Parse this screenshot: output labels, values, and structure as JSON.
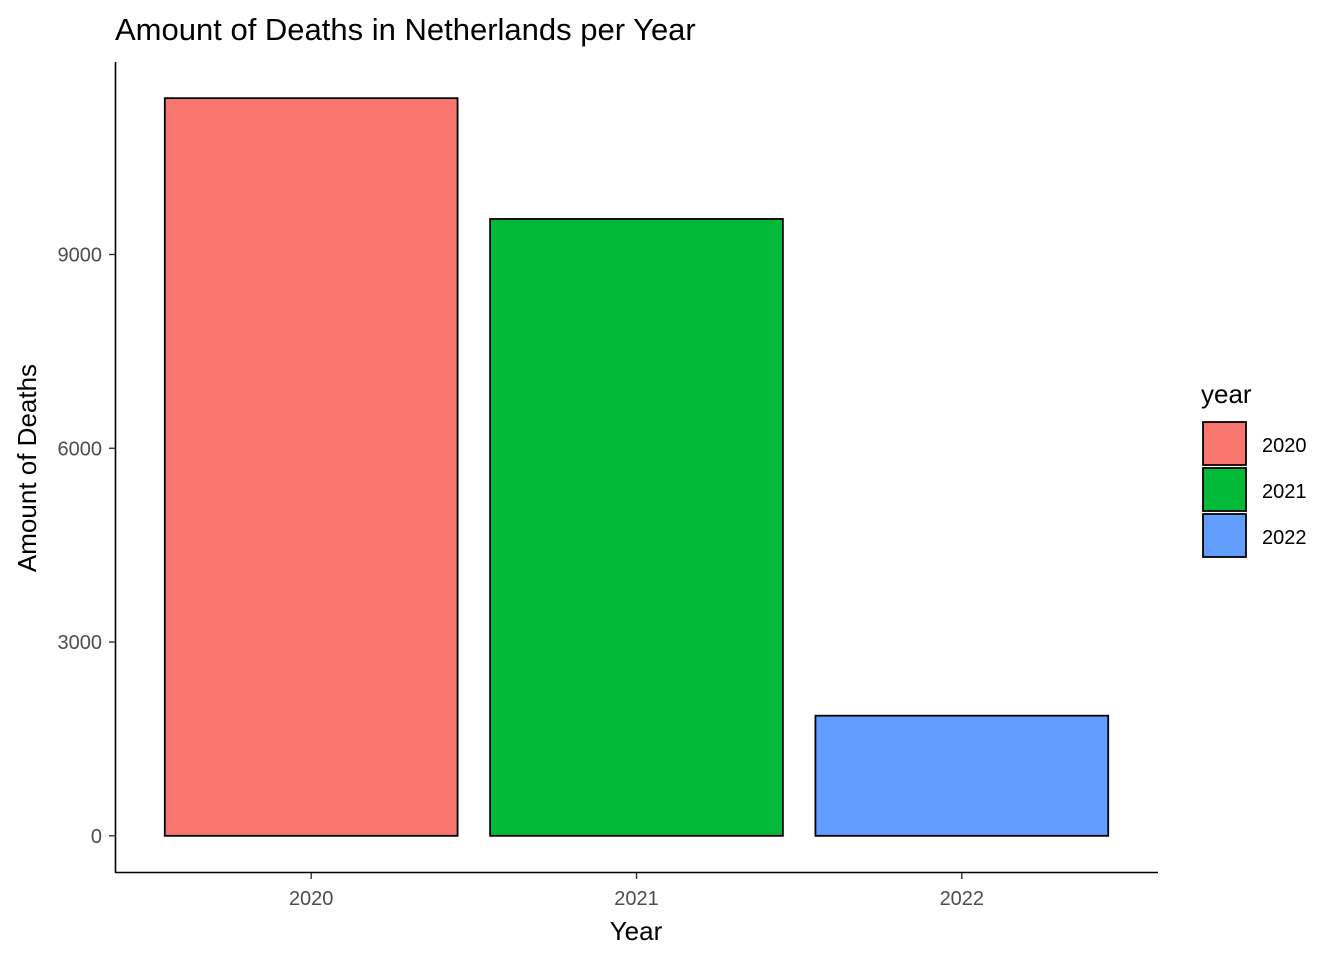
{
  "chart_data": {
    "type": "bar",
    "title": "Amount of Deaths in Netherlands per Year",
    "xlabel": "Year",
    "ylabel": "Amount of Deaths",
    "categories": [
      "2020",
      "2021",
      "2022"
    ],
    "values": [
      11420,
      9550,
      1860
    ],
    "colors": [
      "#F8766D",
      "#00BA38",
      "#619CFF"
    ],
    "ylim": [
      -560,
      11980
    ],
    "yticks": [
      0,
      3000,
      6000,
      9000
    ],
    "ytick_labels": [
      "0",
      "3000",
      "6000",
      "9000"
    ],
    "grid": false,
    "legend": {
      "title": "year",
      "position": "right",
      "entries": [
        "2020",
        "2021",
        "2022"
      ]
    }
  }
}
